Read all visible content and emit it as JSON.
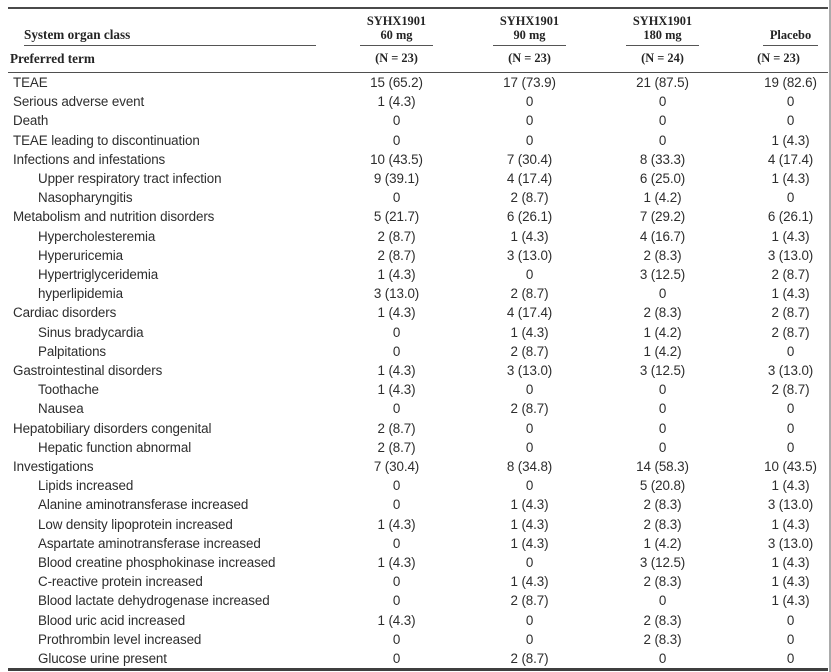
{
  "table": {
    "header": {
      "col1_line1": "System organ class",
      "col1_line2": "Preferred term",
      "groups": [
        {
          "line1": "SYHX1901",
          "line2": "60 mg",
          "n": "(N = 23)"
        },
        {
          "line1": "SYHX1901",
          "line2": "90 mg",
          "n": "(N = 23)"
        },
        {
          "line1": "SYHX1901",
          "line2": "180 mg",
          "n": "(N = 24)"
        },
        {
          "line1": "",
          "line2": "Placebo",
          "n": "(N = 23)"
        }
      ]
    },
    "rows": [
      {
        "label": "TEAE",
        "indent": false,
        "values": [
          "15 (65.2)",
          "17 (73.9)",
          "21 (87.5)",
          "19 (82.6)"
        ]
      },
      {
        "label": "Serious adverse event",
        "indent": false,
        "values": [
          "1 (4.3)",
          "0",
          "0",
          "0"
        ]
      },
      {
        "label": "Death",
        "indent": false,
        "values": [
          "0",
          "0",
          "0",
          "0"
        ]
      },
      {
        "label": "TEAE leading to discontinuation",
        "indent": false,
        "values": [
          "0",
          "0",
          "0",
          "1 (4.3)"
        ]
      },
      {
        "label": "Infections and infestations",
        "indent": false,
        "values": [
          "10 (43.5)",
          "7 (30.4)",
          "8 (33.3)",
          "4 (17.4)"
        ]
      },
      {
        "label": "Upper respiratory tract infection",
        "indent": true,
        "values": [
          "9 (39.1)",
          "4 (17.4)",
          "6 (25.0)",
          "1 (4.3)"
        ]
      },
      {
        "label": "Nasopharyngitis",
        "indent": true,
        "values": [
          "0",
          "2 (8.7)",
          "1 (4.2)",
          "0"
        ]
      },
      {
        "label": "Metabolism and nutrition disorders",
        "indent": false,
        "values": [
          "5 (21.7)",
          "6 (26.1)",
          "7 (29.2)",
          "6 (26.1)"
        ]
      },
      {
        "label": "Hypercholesteremia",
        "indent": true,
        "values": [
          "2 (8.7)",
          "1 (4.3)",
          "4 (16.7)",
          "1 (4.3)"
        ]
      },
      {
        "label": "Hyperuricemia",
        "indent": true,
        "values": [
          "2 (8.7)",
          "3 (13.0)",
          "2 (8.3)",
          "3 (13.0)"
        ]
      },
      {
        "label": "Hypertriglyceridemia",
        "indent": true,
        "values": [
          "1 (4.3)",
          "0",
          "3 (12.5)",
          "2 (8.7)"
        ]
      },
      {
        "label": "hyperlipidemia",
        "indent": true,
        "values": [
          "3 (13.0)",
          "2 (8.7)",
          "0",
          "1 (4.3)"
        ]
      },
      {
        "label": "Cardiac disorders",
        "indent": false,
        "values": [
          "1 (4.3)",
          "4 (17.4)",
          "2 (8.3)",
          "2 (8.7)"
        ]
      },
      {
        "label": "Sinus bradycardia",
        "indent": true,
        "values": [
          "0",
          "1 (4.3)",
          "1 (4.2)",
          "2 (8.7)"
        ]
      },
      {
        "label": "Palpitations",
        "indent": true,
        "values": [
          "0",
          "2 (8.7)",
          "1 (4.2)",
          "0"
        ]
      },
      {
        "label": "Gastrointestinal disorders",
        "indent": false,
        "values": [
          "1 (4.3)",
          "3 (13.0)",
          "3 (12.5)",
          "3 (13.0)"
        ]
      },
      {
        "label": "Toothache",
        "indent": true,
        "values": [
          "1 (4.3)",
          "0",
          "0",
          "2 (8.7)"
        ]
      },
      {
        "label": "Nausea",
        "indent": true,
        "values": [
          "0",
          "2 (8.7)",
          "0",
          "0"
        ]
      },
      {
        "label": "Hepatobiliary disorders congenital",
        "indent": false,
        "values": [
          "2 (8.7)",
          "0",
          "0",
          "0"
        ]
      },
      {
        "label": "Hepatic function abnormal",
        "indent": true,
        "values": [
          "2 (8.7)",
          "0",
          "0",
          "0"
        ]
      },
      {
        "label": "Investigations",
        "indent": false,
        "values": [
          "7 (30.4)",
          "8 (34.8)",
          "14 (58.3)",
          "10 (43.5)"
        ]
      },
      {
        "label": "Lipids increased",
        "indent": true,
        "values": [
          "0",
          "0",
          "5 (20.8)",
          "1 (4.3)"
        ]
      },
      {
        "label": "Alanine aminotransferase increased",
        "indent": true,
        "values": [
          "0",
          "1 (4.3)",
          "2 (8.3)",
          "3 (13.0)"
        ]
      },
      {
        "label": "Low density lipoprotein increased",
        "indent": true,
        "values": [
          "1 (4.3)",
          "1 (4.3)",
          "2 (8.3)",
          "1 (4.3)"
        ]
      },
      {
        "label": "Aspartate aminotransferase increased",
        "indent": true,
        "values": [
          "0",
          "1 (4.3)",
          "1 (4.2)",
          "3 (13.0)"
        ]
      },
      {
        "label": "Blood creatine phosphokinase increased",
        "indent": true,
        "values": [
          "1 (4.3)",
          "0",
          "3 (12.5)",
          "1 (4.3)"
        ]
      },
      {
        "label": "C-reactive protein increased",
        "indent": true,
        "values": [
          "0",
          "1 (4.3)",
          "2 (8.3)",
          "1 (4.3)"
        ]
      },
      {
        "label": "Blood lactate dehydrogenase increased",
        "indent": true,
        "values": [
          "0",
          "2 (8.7)",
          "0",
          "1 (4.3)"
        ]
      },
      {
        "label": "Blood uric acid increased",
        "indent": true,
        "values": [
          "1 (4.3)",
          "0",
          "2 (8.3)",
          "0"
        ]
      },
      {
        "label": "Prothrombin level increased",
        "indent": true,
        "values": [
          "0",
          "0",
          "2 (8.3)",
          "0"
        ]
      },
      {
        "label": "Glucose urine present",
        "indent": true,
        "values": [
          "0",
          "2 (8.7)",
          "0",
          "0"
        ]
      }
    ]
  }
}
